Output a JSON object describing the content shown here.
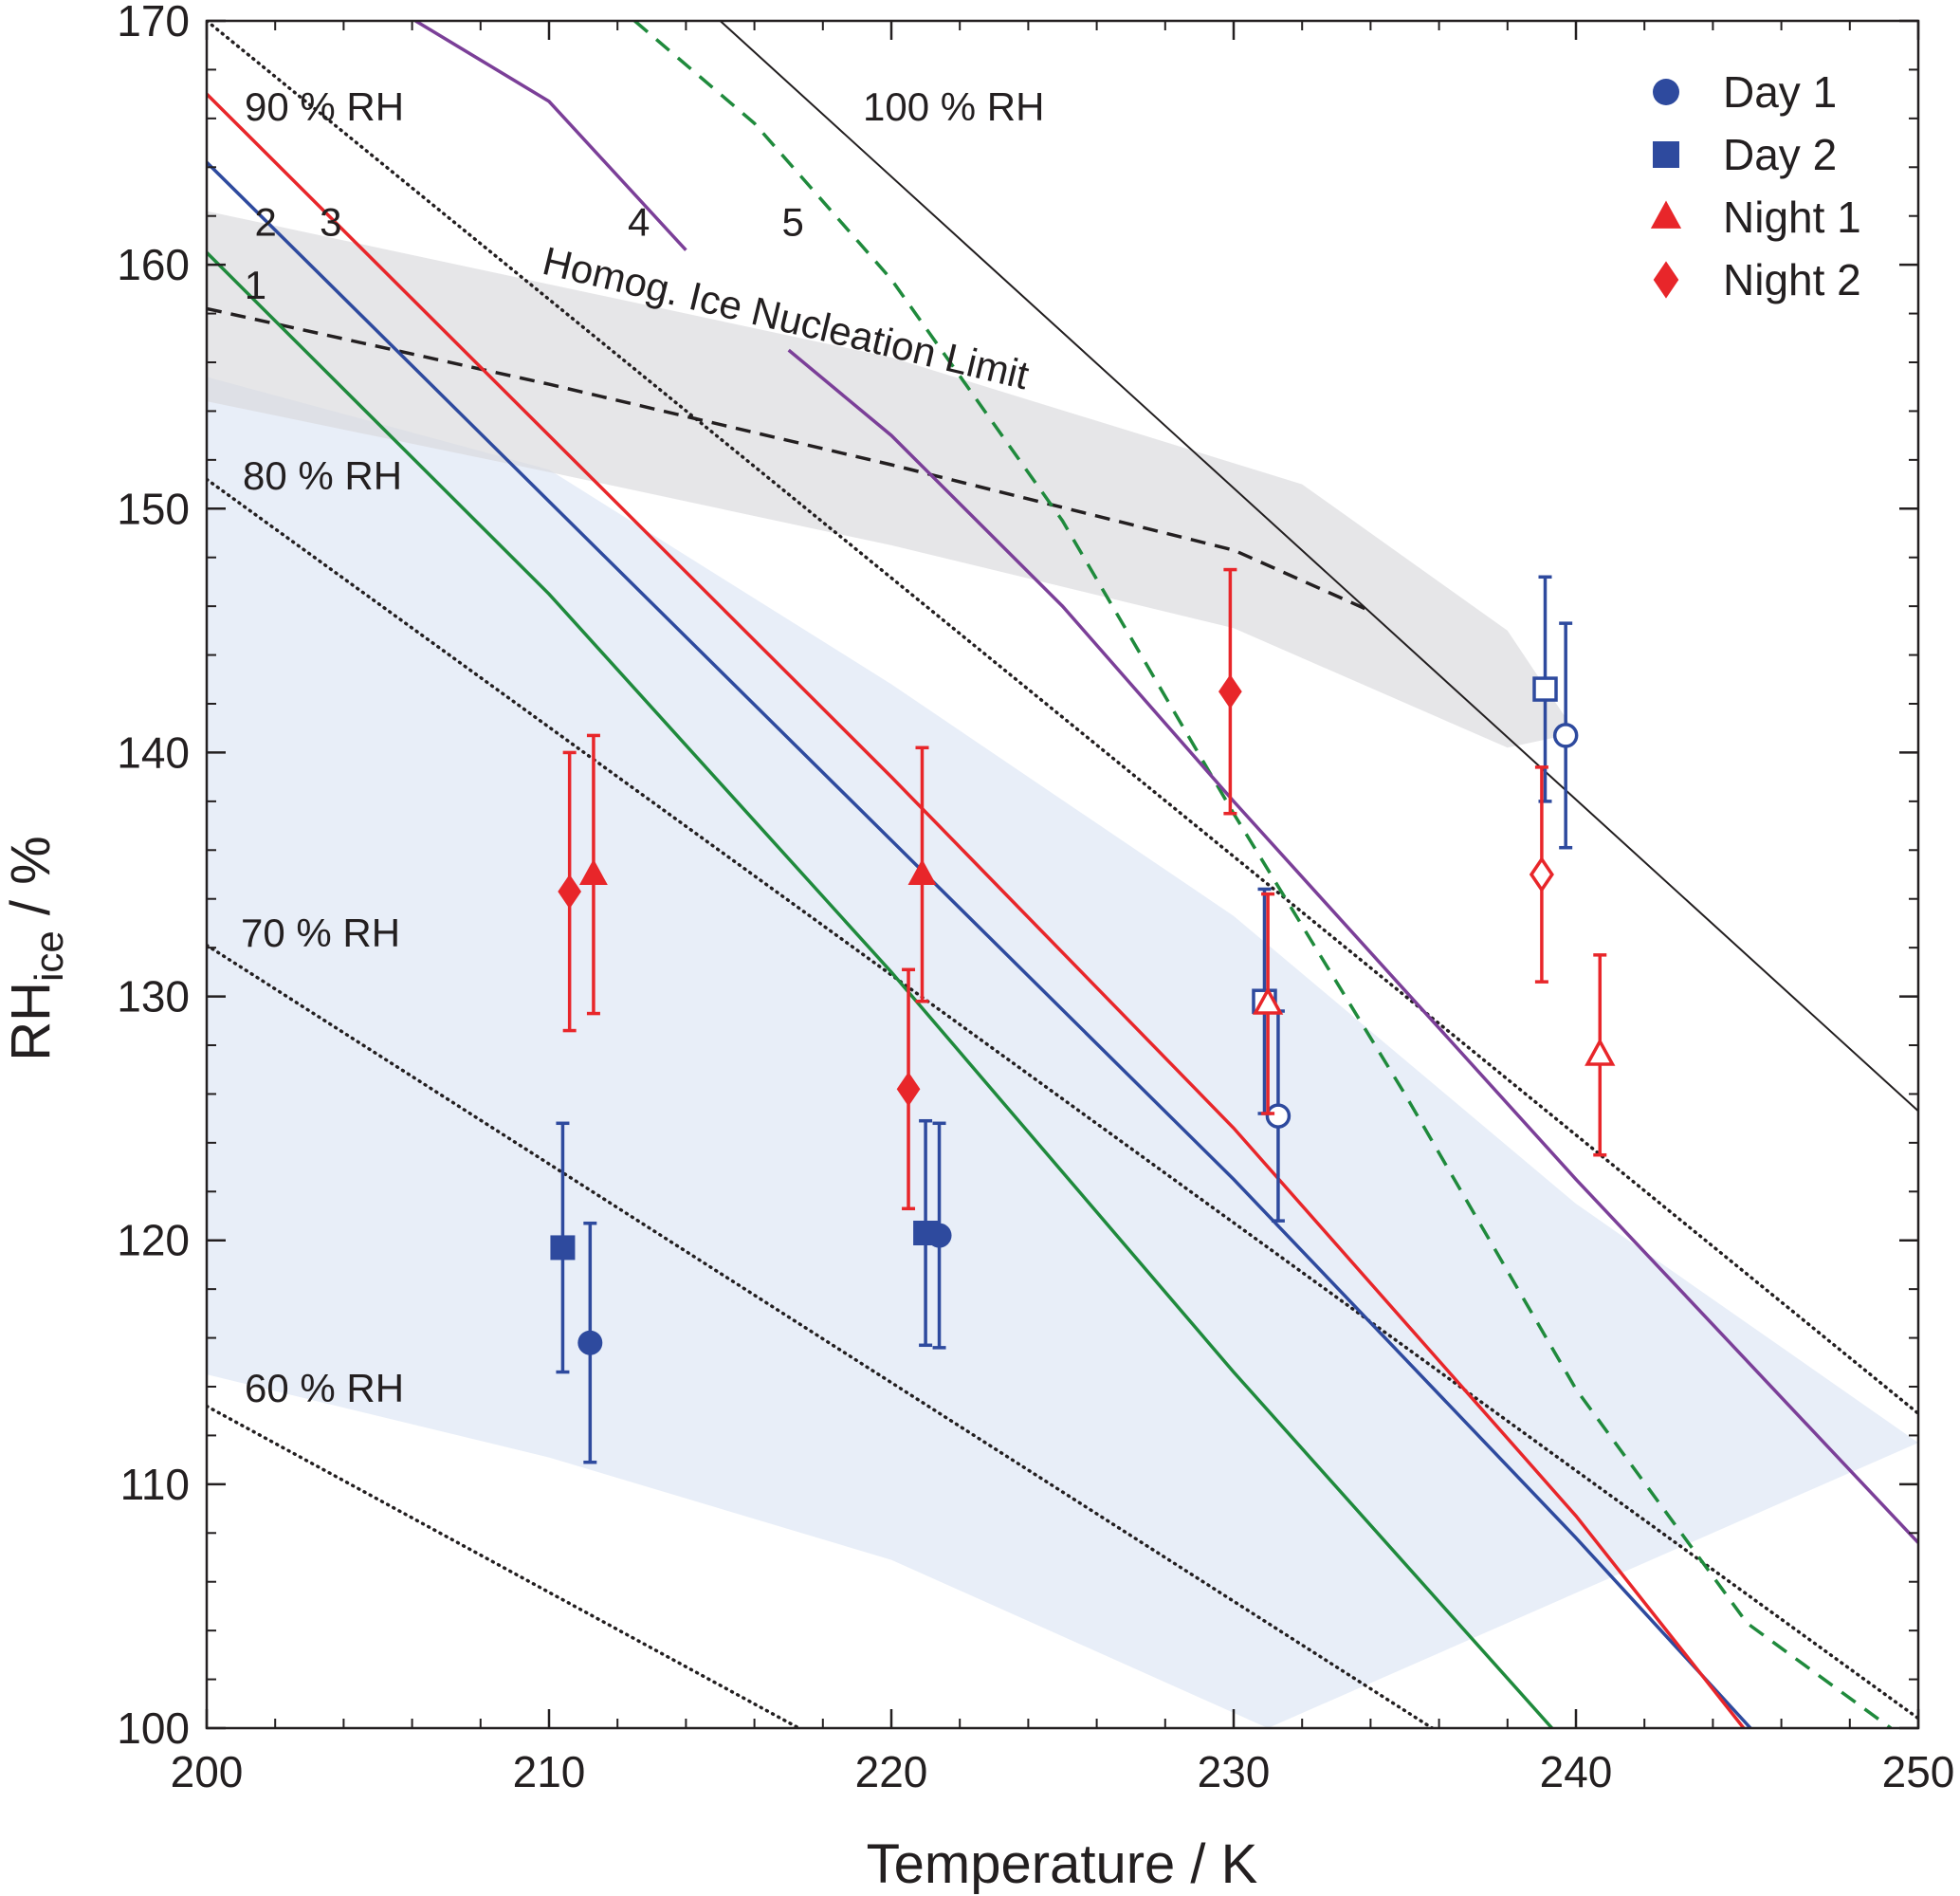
{
  "chart_data": {
    "type": "scatter",
    "xlabel": "Temperature / K",
    "ylabel_main": "RH",
    "ylabel_sub": "ice",
    "ylabel_unit": " / %",
    "xlim": [
      200,
      250
    ],
    "ylim": [
      100,
      170
    ],
    "xticks": [
      200,
      210,
      220,
      230,
      240,
      250
    ],
    "yticks": [
      100,
      110,
      120,
      130,
      140,
      150,
      160,
      170
    ],
    "legend_position": "top-right",
    "series": [
      {
        "name": "Day 1",
        "marker": "circle",
        "color": "#2e4a9e",
        "points": [
          {
            "x": 211.2,
            "y": 115.8,
            "err": 4.9,
            "filled": true
          },
          {
            "x": 221.4,
            "y": 120.2,
            "err": 4.6,
            "filled": true
          },
          {
            "x": 231.3,
            "y": 125.1,
            "err": 4.3,
            "filled": false
          },
          {
            "x": 239.7,
            "y": 140.7,
            "err": 4.6,
            "filled": false
          }
        ]
      },
      {
        "name": "Day 2",
        "marker": "square",
        "color": "#2e4a9e",
        "points": [
          {
            "x": 210.4,
            "y": 119.7,
            "err": 5.1,
            "filled": true
          },
          {
            "x": 221.0,
            "y": 120.3,
            "err": 4.6,
            "filled": true
          },
          {
            "x": 230.9,
            "y": 129.8,
            "err": 4.6,
            "filled": false
          },
          {
            "x": 239.1,
            "y": 142.6,
            "err": 4.6,
            "filled": false
          }
        ]
      },
      {
        "name": "Night 1",
        "marker": "triangle",
        "color": "#e8262a",
        "points": [
          {
            "x": 211.3,
            "y": 135.0,
            "err": 5.7,
            "filled": true
          },
          {
            "x": 220.9,
            "y": 135.0,
            "err": 5.2,
            "filled": true
          },
          {
            "x": 231.0,
            "y": 129.7,
            "err": 4.5,
            "filled": false
          },
          {
            "x": 240.7,
            "y": 127.6,
            "err": 4.1,
            "filled": false
          }
        ]
      },
      {
        "name": "Night 2",
        "marker": "diamond",
        "color": "#e8262a",
        "points": [
          {
            "x": 210.6,
            "y": 134.3,
            "err": 5.7,
            "filled": true
          },
          {
            "x": 220.5,
            "y": 126.2,
            "err": 4.9,
            "filled": true
          },
          {
            "x": 229.9,
            "y": 142.5,
            "err": 5.0,
            "filled": true
          },
          {
            "x": 239.0,
            "y": 135.0,
            "err": 4.4,
            "filled": false
          }
        ]
      }
    ],
    "rh_isolines": [
      {
        "label": "60 % RH",
        "pts": [
          [
            200,
            113.2
          ],
          [
            217.3,
            100
          ]
        ]
      },
      {
        "label": "70 % RH",
        "pts": [
          [
            200,
            132.1
          ],
          [
            235.8,
            100
          ]
        ]
      },
      {
        "label": "80 % RH",
        "pts": [
          [
            200,
            151.2
          ],
          [
            250,
            100.4
          ]
        ]
      },
      {
        "label": "90 % RH",
        "pts": [
          [
            200,
            170
          ],
          [
            250,
            112.9
          ]
        ]
      },
      {
        "label": "100 % RH",
        "pts": [
          [
            215,
            170
          ],
          [
            250,
            125.3
          ]
        ]
      }
    ],
    "homogeneous_limit": {
      "label": "Homog. Ice Nucleation Limit",
      "pts": [
        [
          200,
          158.2
        ],
        [
          210,
          155.1
        ],
        [
          220,
          151.8
        ],
        [
          230,
          148.3
        ],
        [
          234,
          145.8
        ]
      ],
      "band_upper": [
        [
          200,
          162.2
        ],
        [
          210,
          159.2
        ],
        [
          220,
          156.2
        ],
        [
          232,
          151.0
        ],
        [
          234,
          149.0
        ],
        [
          238,
          145.0
        ],
        [
          240,
          140.8
        ]
      ],
      "band_lower": [
        [
          200,
          154.4
        ],
        [
          210,
          151.5
        ],
        [
          220,
          148.5
        ],
        [
          230,
          145.1
        ],
        [
          238,
          140.2
        ],
        [
          240,
          140.8
        ]
      ]
    },
    "model_curves": [
      {
        "label": "1",
        "color": "#1f8a3c",
        "style": "solid",
        "pts": [
          [
            200,
            160.5
          ],
          [
            210,
            146.5
          ],
          [
            220,
            131.0
          ],
          [
            230,
            114.6
          ],
          [
            239.3,
            100
          ]
        ]
      },
      {
        "label": "2",
        "color": "#2e4a9e",
        "style": "solid",
        "pts": [
          [
            200,
            164.2
          ],
          [
            210,
            150.3
          ],
          [
            220,
            136.4
          ],
          [
            230,
            122.5
          ],
          [
            240,
            107.8
          ],
          [
            245.1,
            100
          ]
        ]
      },
      {
        "label": "3",
        "color": "#e8262a",
        "style": "solid",
        "pts": [
          [
            200,
            167.0
          ],
          [
            210,
            153.0
          ],
          [
            220,
            139.0
          ],
          [
            230,
            124.6
          ],
          [
            240,
            108.7
          ],
          [
            244.9,
            100
          ]
        ]
      },
      {
        "label": "4",
        "color": "#7b3f98",
        "style": "solid",
        "pts": [
          [
            206.1,
            170
          ],
          [
            210,
            166.7
          ],
          [
            214,
            160.6
          ]
        ]
      },
      {
        "label": "5",
        "color": "#1f8a3c",
        "style": "dashed",
        "pts": [
          [
            212.5,
            170
          ],
          [
            216,
            165.8
          ],
          [
            220,
            159.4
          ],
          [
            225,
            149.5
          ],
          [
            230,
            137.5
          ],
          [
            235,
            126.0
          ],
          [
            240,
            113.9
          ],
          [
            245,
            104.3
          ],
          [
            249.2,
            100
          ]
        ]
      }
    ],
    "model_curve_4_lower": {
      "color": "#7b3f98",
      "pts": [
        [
          217,
          156.5
        ],
        [
          220,
          153.0
        ],
        [
          225,
          146.0
        ],
        [
          230,
          138.0
        ],
        [
          240,
          122.5
        ],
        [
          250,
          107.6
        ]
      ]
    },
    "supersaturation_band": {
      "color": "#e8eef8",
      "upper": [
        [
          200,
          155.4
        ],
        [
          210,
          151.6
        ],
        [
          220,
          142.8
        ],
        [
          230,
          133.3
        ],
        [
          240,
          121.5
        ],
        [
          250,
          111.7
        ]
      ],
      "lower": [
        [
          200,
          114.5
        ],
        [
          210,
          111.1
        ],
        [
          220,
          106.9
        ],
        [
          231,
          100
        ]
      ]
    },
    "annotations": [
      "1",
      "2",
      "3",
      "4",
      "5",
      "60 % RH",
      "70 % RH",
      "80 % RH",
      "90 % RH",
      "100 % RH",
      "Homog. Ice Nucleation Limit"
    ]
  }
}
